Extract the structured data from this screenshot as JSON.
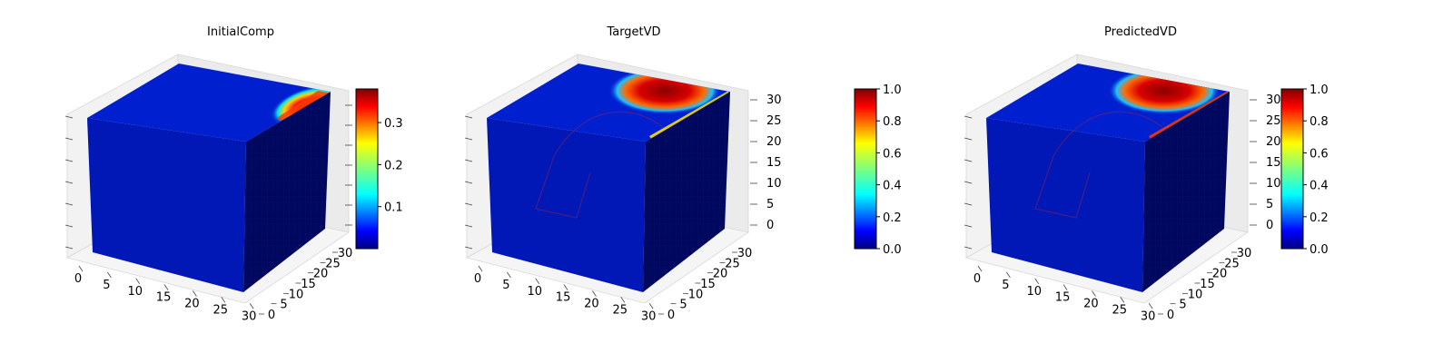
{
  "figure": {
    "panels": [
      "InitialComp",
      "TargetVD",
      "PredictedVD"
    ]
  },
  "chart_data": [
    {
      "type": "heatmap",
      "subtype": "3d-voxel-cube",
      "title": "InitialComp",
      "colormap": "jet",
      "x_ticks": [
        "0",
        "5",
        "10",
        "15",
        "20",
        "25",
        "30"
      ],
      "y_ticks": [
        "0",
        "5",
        "10",
        "15",
        "20",
        "25",
        "30"
      ],
      "z_ticks": [],
      "xlim": [
        0,
        32
      ],
      "ylim": [
        0,
        32
      ],
      "zlim": [
        0,
        32
      ],
      "colorbar": {
        "ticks": [
          "0.1",
          "0.2",
          "0.3"
        ],
        "range": [
          0.0,
          0.38
        ]
      },
      "hotspot": {
        "peak": 0.38,
        "background": 0.0
      }
    },
    {
      "type": "heatmap",
      "subtype": "3d-voxel-cube",
      "title": "TargetVD",
      "colormap": "jet",
      "x_ticks": [
        "0",
        "5",
        "10",
        "15",
        "20",
        "25",
        "30"
      ],
      "y_ticks": [
        "0",
        "5",
        "10",
        "15",
        "20",
        "25",
        "30"
      ],
      "z_ticks": [
        "0",
        "5",
        "10",
        "15",
        "20",
        "25",
        "30"
      ],
      "xlim": [
        0,
        32
      ],
      "ylim": [
        0,
        32
      ],
      "zlim": [
        0,
        32
      ],
      "colorbar": {
        "ticks": [
          "0.0",
          "0.2",
          "0.4",
          "0.6",
          "0.8",
          "1.0"
        ],
        "range": [
          0.0,
          1.0
        ]
      },
      "hotspot": {
        "peak": 1.0,
        "background": 0.0
      }
    },
    {
      "type": "heatmap",
      "subtype": "3d-voxel-cube",
      "title": "PredictedVD",
      "colormap": "jet",
      "x_ticks": [
        "0",
        "5",
        "10",
        "15",
        "20",
        "25",
        "30"
      ],
      "y_ticks": [
        "0",
        "5",
        "10",
        "15",
        "20",
        "25",
        "30"
      ],
      "z_ticks": [
        "0",
        "5",
        "10",
        "15",
        "20",
        "25",
        "30"
      ],
      "xlim": [
        0,
        32
      ],
      "ylim": [
        0,
        32
      ],
      "zlim": [
        0,
        32
      ],
      "colorbar": {
        "ticks": [
          "0.0",
          "0.2",
          "0.4",
          "0.6",
          "0.8",
          "1.0"
        ],
        "range": [
          0.0,
          1.0
        ]
      },
      "hotspot": {
        "peak": 1.0,
        "background": 0.0
      }
    }
  ]
}
